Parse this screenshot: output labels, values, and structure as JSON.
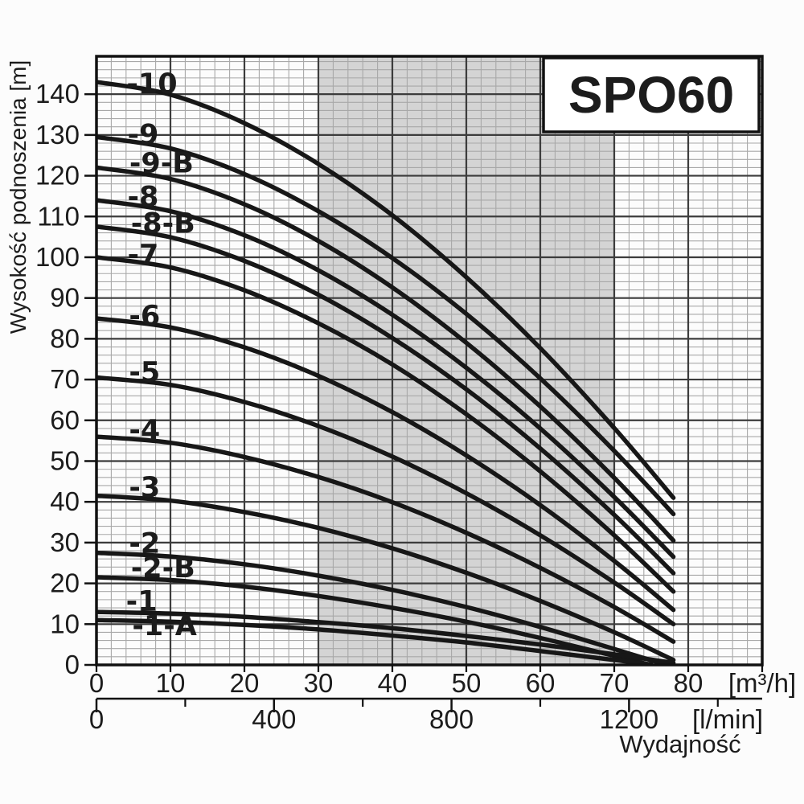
{
  "title_box": {
    "text": "SPO60"
  },
  "y_axis": {
    "label": "Wysokość podnoszenia [m]",
    "tick_values": [
      0,
      10,
      20,
      30,
      40,
      50,
      60,
      70,
      80,
      90,
      100,
      110,
      120,
      130,
      140
    ]
  },
  "x_axis_m3h": {
    "unit": "[m³/h]",
    "tick_values": [
      0,
      10,
      20,
      30,
      40,
      50,
      60,
      70,
      80
    ]
  },
  "x_axis_lmin": {
    "unit": "[l/min]",
    "axis_label": "Wydajność",
    "major_ticks": [
      0,
      400,
      800,
      1200
    ],
    "minor_ticks": [
      200,
      600,
      1000,
      1400
    ],
    "lmin_per_m3h": 16.667
  },
  "colors": {
    "curve": "#171717",
    "curve_label": "#cd2328",
    "grid_major": "#3c3c3c",
    "grid_minor": "#a8a8a8",
    "shaded_band": "#d4d4d4",
    "border": "#111111",
    "text": "#1c1c1c",
    "box_bg": "#ffffff"
  },
  "chart_data": {
    "type": "line",
    "title": "SPO60",
    "xlabel": "Wydajność",
    "x_units": [
      "[m³/h]",
      "[l/min]"
    ],
    "ylabel": "Wysokość podnoszenia [m]",
    "xlim_m3h": [
      0,
      90
    ],
    "ylim": [
      0,
      149.3
    ],
    "x_ticks_m3h": [
      0,
      10,
      20,
      30,
      40,
      50,
      60,
      70,
      80
    ],
    "y_ticks": [
      0,
      10,
      20,
      30,
      40,
      50,
      60,
      70,
      80,
      90,
      100,
      110,
      120,
      130,
      140
    ],
    "grid_minor_step_x": 2,
    "grid_minor_step_y": 2,
    "shaded_band_x_m3h": [
      30,
      70
    ],
    "legend": "none",
    "series": [
      {
        "name": "-10",
        "label_pos": [
          7.5,
          142.6
        ],
        "points": [
          [
            0,
            143
          ],
          [
            10,
            139.9
          ],
          [
            20,
            132.9
          ],
          [
            30,
            122.9
          ],
          [
            40,
            110.3
          ],
          [
            50,
            95.1
          ],
          [
            60,
            77.7
          ],
          [
            70,
            58.1
          ],
          [
            78,
            41
          ]
        ]
      },
      {
        "name": "-9",
        "label_pos": [
          6.3,
          130.2
        ],
        "points": [
          [
            0,
            129.5
          ],
          [
            10,
            126.7
          ],
          [
            20,
            120.4
          ],
          [
            30,
            111.3
          ],
          [
            40,
            99.8
          ],
          [
            50,
            86.1
          ],
          [
            60,
            70.3
          ],
          [
            70,
            52.5
          ],
          [
            78,
            37
          ]
        ]
      },
      {
        "name": "-9-B",
        "label_pos": [
          8.8,
          123.2
        ],
        "points": [
          [
            0,
            122
          ],
          [
            10,
            119.2
          ],
          [
            20,
            113
          ],
          [
            30,
            104
          ],
          [
            40,
            92.6
          ],
          [
            50,
            79
          ],
          [
            60,
            63.4
          ],
          [
            70,
            45.9
          ],
          [
            78,
            30.5
          ]
        ]
      },
      {
        "name": "-8",
        "label_pos": [
          6.3,
          114.9
        ],
        "points": [
          [
            0,
            114
          ],
          [
            10,
            111.3
          ],
          [
            20,
            105.4
          ],
          [
            30,
            96.8
          ],
          [
            40,
            85.9
          ],
          [
            50,
            72.9
          ],
          [
            60,
            58
          ],
          [
            70,
            41.2
          ],
          [
            78,
            26.5
          ]
        ]
      },
      {
        "name": "-8-B",
        "label_pos": [
          9.0,
          108.4
        ],
        "points": [
          [
            0,
            107.5
          ],
          [
            10,
            104.9
          ],
          [
            20,
            99.1
          ],
          [
            30,
            90.8
          ],
          [
            40,
            80.2
          ],
          [
            50,
            67.6
          ],
          [
            60,
            53.1
          ],
          [
            70,
            36.8
          ],
          [
            78,
            22.5
          ]
        ]
      },
      {
        "name": "-7",
        "label_pos": [
          6.3,
          100.7
        ],
        "points": [
          [
            0,
            100
          ],
          [
            10,
            97.5
          ],
          [
            20,
            91.9
          ],
          [
            30,
            83.8
          ],
          [
            40,
            73.7
          ],
          [
            50,
            61.5
          ],
          [
            60,
            47.5
          ],
          [
            70,
            31.8
          ],
          [
            78,
            18
          ]
        ]
      },
      {
        "name": "-6",
        "label_pos": [
          6.5,
          85.7
        ],
        "points": [
          [
            0,
            85
          ],
          [
            10,
            82.8
          ],
          [
            20,
            77.9
          ],
          [
            30,
            70.9
          ],
          [
            40,
            62
          ],
          [
            50,
            51.4
          ],
          [
            60,
            39.2
          ],
          [
            70,
            25.5
          ],
          [
            78,
            13.5
          ]
        ]
      },
      {
        "name": "-5",
        "label_pos": [
          6.5,
          71.9
        ],
        "points": [
          [
            0,
            70.5
          ],
          [
            10,
            68.7
          ],
          [
            20,
            64.5
          ],
          [
            30,
            58.6
          ],
          [
            40,
            51.1
          ],
          [
            50,
            42.1
          ],
          [
            60,
            31.8
          ],
          [
            70,
            20.2
          ],
          [
            78,
            10
          ]
        ]
      },
      {
        "name": "-4",
        "label_pos": [
          6.5,
          57.7
        ],
        "points": [
          [
            0,
            56
          ],
          [
            10,
            54.5
          ],
          [
            20,
            51
          ],
          [
            30,
            46.1
          ],
          [
            40,
            39.9
          ],
          [
            50,
            32.4
          ],
          [
            60,
            23.8
          ],
          [
            70,
            14.2
          ],
          [
            78,
            5.7
          ]
        ]
      },
      {
        "name": "-3",
        "label_pos": [
          6.5,
          43.6
        ],
        "points": [
          [
            0,
            41.5
          ],
          [
            10,
            40.3
          ],
          [
            20,
            37.5
          ],
          [
            30,
            33.6
          ],
          [
            40,
            28.6
          ],
          [
            50,
            22.6
          ],
          [
            60,
            15.7
          ],
          [
            70,
            8
          ],
          [
            78,
            1.2
          ]
        ]
      },
      {
        "name": "-2",
        "label_pos": [
          6.5,
          29.9
        ],
        "points": [
          [
            0,
            27.5
          ],
          [
            10,
            26.6
          ],
          [
            20,
            24.7
          ],
          [
            30,
            21.9
          ],
          [
            40,
            18.4
          ],
          [
            50,
            14.2
          ],
          [
            60,
            9.3
          ],
          [
            70,
            3.9
          ],
          [
            76.5,
            0.3
          ]
        ]
      },
      {
        "name": "-2-B",
        "label_pos": [
          9.0,
          23.9
        ],
        "points": [
          [
            0,
            21.5
          ],
          [
            10,
            20.8
          ],
          [
            20,
            19.2
          ],
          [
            30,
            16.9
          ],
          [
            40,
            14
          ],
          [
            50,
            10.6
          ],
          [
            60,
            6.6
          ],
          [
            70,
            2.2
          ],
          [
            74.5,
            0.2
          ]
        ]
      },
      {
        "name": "-1",
        "label_pos": [
          6.1,
          15.7
        ],
        "points": [
          [
            0,
            13
          ],
          [
            10,
            12.6
          ],
          [
            20,
            11.8
          ],
          [
            30,
            10.5
          ],
          [
            40,
            9
          ],
          [
            50,
            7.1
          ],
          [
            60,
            5
          ],
          [
            70,
            2.6
          ],
          [
            78,
            0.5
          ]
        ]
      },
      {
        "name": "-1-A",
        "label_pos": [
          9.2,
          9.7
        ],
        "points": [
          [
            0,
            11
          ],
          [
            10,
            10.6
          ],
          [
            20,
            9.8
          ],
          [
            30,
            8.7
          ],
          [
            40,
            7.2
          ],
          [
            50,
            5.5
          ],
          [
            60,
            3.4
          ],
          [
            70,
            1.2
          ],
          [
            75,
            0.1
          ]
        ]
      }
    ]
  }
}
